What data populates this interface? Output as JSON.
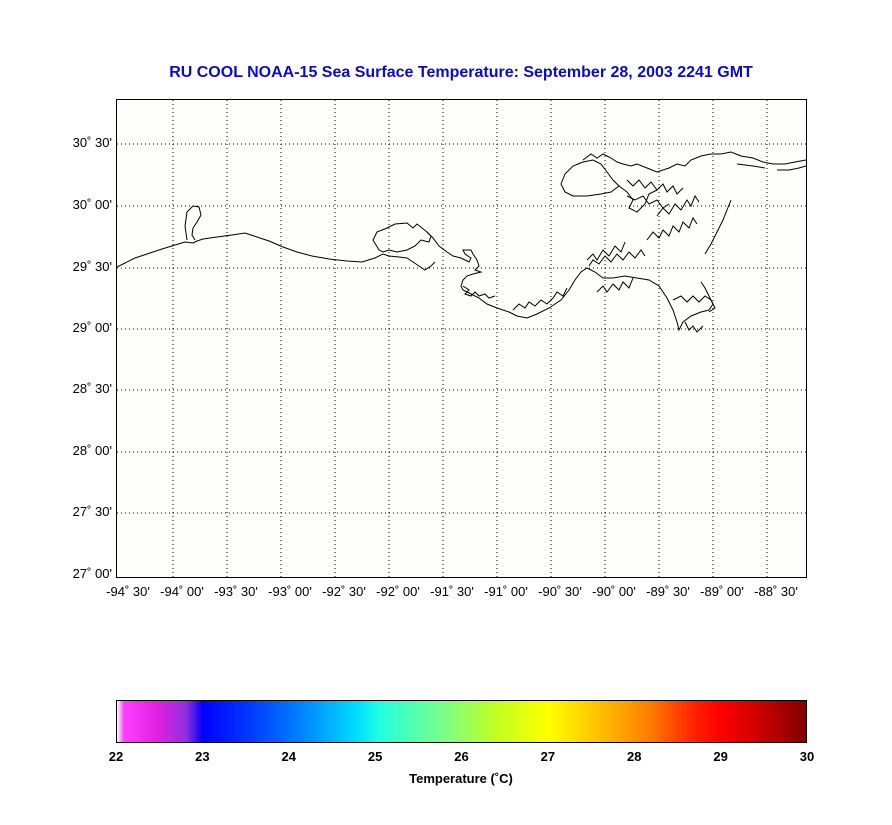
{
  "title": "RU COOL  NOAA-15  Sea Surface Temperature:  September 28, 2003 2241 GMT",
  "map": {
    "lon_range": [
      -94.5,
      -88.0
    ],
    "lat_range": [
      27.0,
      30.9
    ],
    "grid": true,
    "lat_labels": [
      "30˚ 30'",
      "30˚ 00'",
      "29˚ 30'",
      "29˚ 00'",
      "28˚ 30'",
      "28˚ 00'",
      "27˚ 30'",
      "27˚ 00'"
    ],
    "lon_labels": [
      "-94˚ 30'",
      "-94˚ 00'",
      "-93˚ 30'",
      "-93˚ 00'",
      "-92˚ 30'",
      "-92˚ 00'",
      "-91˚ 30'",
      "-91˚ 00'",
      "-90˚ 30'",
      "-90˚ 00'",
      "-89˚ 30'",
      "-89˚ 00'",
      "-88˚ 30'"
    ]
  },
  "colorbar": {
    "ticks": [
      "22",
      "23",
      "24",
      "25",
      "26",
      "27",
      "28",
      "29",
      "30"
    ],
    "label": "Temperature (˚C)"
  },
  "colors": {
    "title": "#0a0ad0",
    "map_background": "#fefefa"
  }
}
